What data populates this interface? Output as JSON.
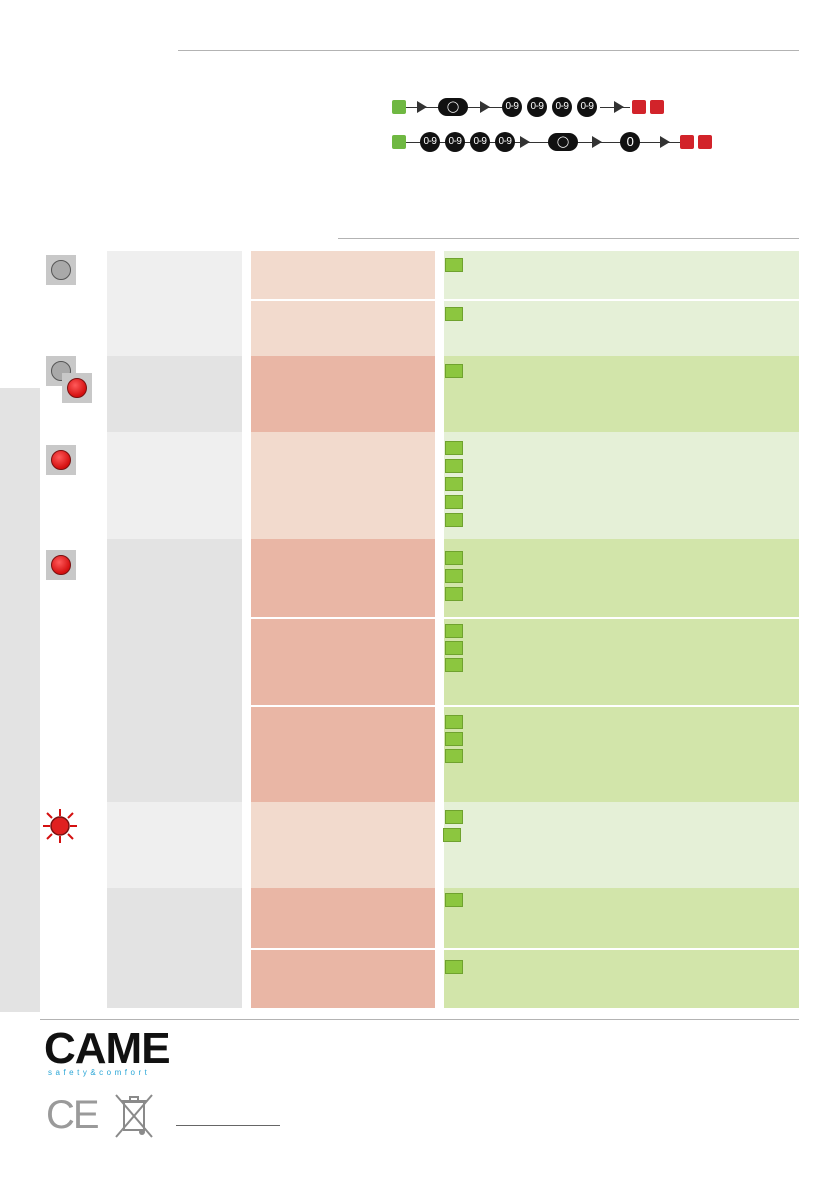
{
  "brand": {
    "name": "CAME",
    "tagline": "safety&comfort",
    "color": "#111111",
    "tagline_color": "#2aa6d6"
  },
  "sequences": {
    "row1_digits": [
      "0-9",
      "0-9",
      "0-9",
      "0-9"
    ],
    "row2_digits": [
      "0-9",
      "0-9",
      "0-9",
      "0-9"
    ],
    "row2_zero": "0"
  },
  "colors": {
    "green_square": "#8cc63f",
    "led_red": "#d40f0f",
    "pink_light": "#f2dacd",
    "pink_dark": "#e9b6a5",
    "green_light": "#e5f0d7",
    "green_dark": "#d2e5aa"
  },
  "icons": {
    "led_grey": "led-off-icon",
    "led_red": "led-on-icon",
    "led_blink": "led-blinking-icon",
    "ce": "ce-mark-icon",
    "weee": "weee-bin-icon"
  },
  "footer": {
    "ce_mark": "CE"
  }
}
